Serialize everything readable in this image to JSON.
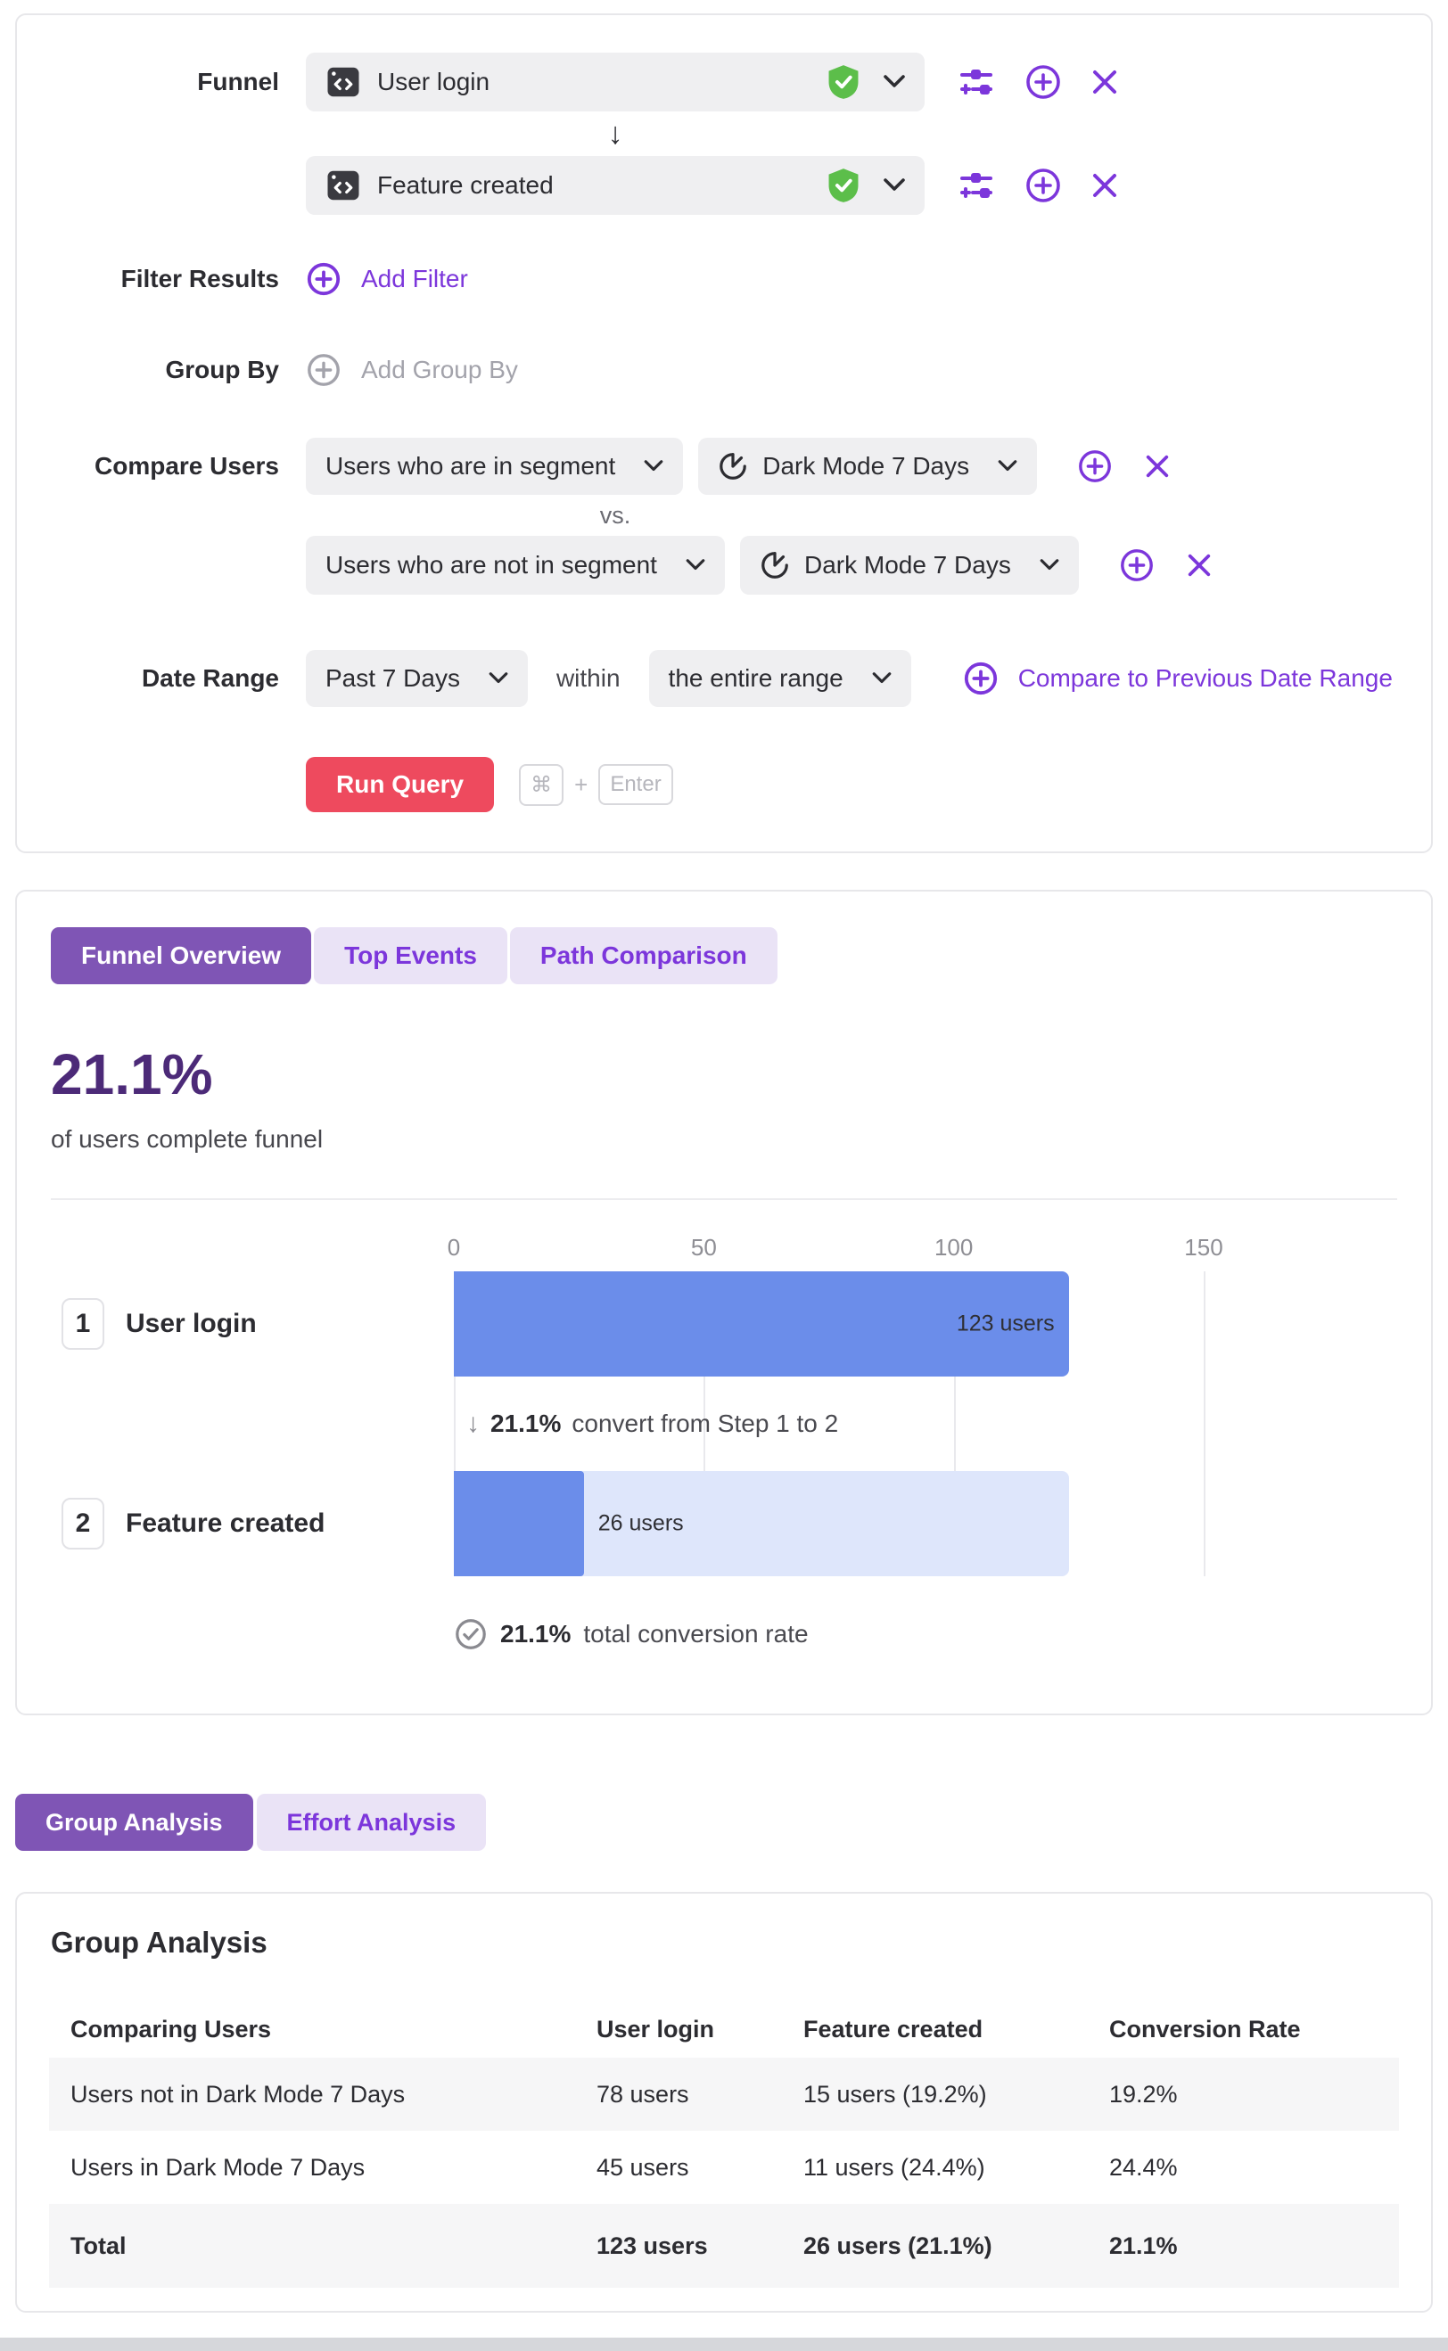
{
  "colors": {
    "accent_purple": "#7c36db",
    "active_tab_purple": "#7f55b5",
    "headline_purple": "#4c2a78",
    "run_button_red": "#ee4a5e",
    "bar_blue": "#6b8dea",
    "bar_light_blue": "#dee6fb",
    "shield_green": "#5cbe4a",
    "input_gray": "#efeff1",
    "stripe_gray": "#f6f6f7"
  },
  "query_builder": {
    "funnel_label": "Funnel",
    "steps": [
      {
        "event": "User login"
      },
      {
        "event": "Feature created"
      }
    ],
    "step_arrow": "↓",
    "filter_results_label": "Filter Results",
    "add_filter_label": "Add Filter",
    "group_by_label": "Group By",
    "add_group_by_label": "Add Group By",
    "compare_users_label": "Compare Users",
    "comparisons": [
      {
        "segment_type": "Users who are in segment",
        "segment": "Dark Mode 7 Days"
      },
      {
        "segment_type": "Users who are not in segment",
        "segment": "Dark Mode 7 Days"
      }
    ],
    "vs_label": "vs.",
    "date_range_label": "Date Range",
    "date_range_value": "Past 7 Days",
    "within_label": "within",
    "range_scope_value": "the entire range",
    "compare_previous_label": "Compare to Previous Date Range",
    "run_query_label": "Run Query",
    "shortcut": {
      "cmd": "⌘",
      "plus": "+",
      "enter": "Enter"
    }
  },
  "results": {
    "tabs": [
      {
        "label": "Funnel Overview",
        "active": true
      },
      {
        "label": "Top Events",
        "active": false
      },
      {
        "label": "Path Comparison",
        "active": false
      }
    ],
    "summary_value": "21.1%",
    "summary_caption": "of users complete funnel"
  },
  "chart_data": {
    "type": "bar",
    "orientation": "horizontal",
    "categories": [
      "User login",
      "Feature created"
    ],
    "step_numbers": [
      "1",
      "2"
    ],
    "values": [
      123,
      26
    ],
    "value_labels": [
      "123 users",
      "26 users"
    ],
    "x_ticks": [
      0,
      50,
      100,
      150
    ],
    "xlim": [
      0,
      150
    ],
    "grid": true,
    "step_conversion": {
      "arrow": "↓",
      "bold": "21.1%",
      "text": "convert from Step 1 to 2"
    },
    "total_conversion": {
      "bold": "21.1%",
      "text": "total conversion rate"
    }
  },
  "analysis_tabs": [
    {
      "label": "Group Analysis",
      "active": true
    },
    {
      "label": "Effort Analysis",
      "active": false
    }
  ],
  "group_analysis": {
    "title": "Group Analysis",
    "columns": [
      "Comparing Users",
      "User login",
      "Feature created",
      "Conversion Rate"
    ],
    "rows": [
      {
        "cells": [
          "Users not in Dark Mode 7 Days",
          "78 users",
          "15 users (19.2%)",
          "19.2%"
        ]
      },
      {
        "cells": [
          "Users in Dark Mode 7 Days",
          "45 users",
          "11 users (24.4%)",
          "24.4%"
        ]
      },
      {
        "cells": [
          "Total",
          "123 users",
          "26 users (21.1%)",
          "21.1%"
        ]
      }
    ]
  }
}
